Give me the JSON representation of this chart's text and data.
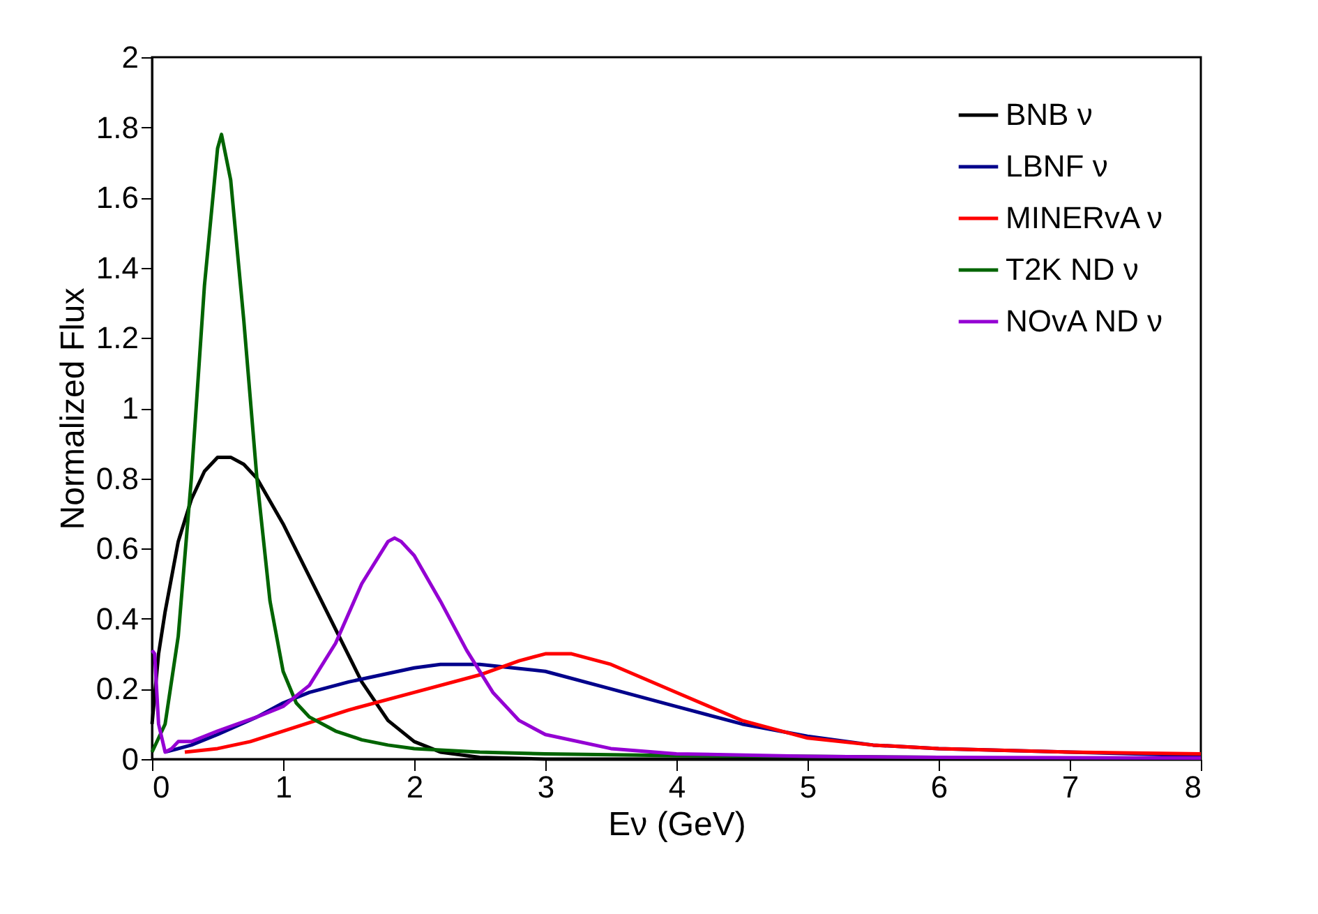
{
  "chart_data": {
    "type": "line",
    "xlabel": "Eν (GeV)",
    "ylabel": "Normalized Flux",
    "xlim": [
      0,
      8
    ],
    "xticks": [
      0,
      1,
      2,
      3,
      4,
      5,
      6,
      7,
      8
    ],
    "ylim": [
      0,
      2
    ],
    "yticks": [
      0,
      0.2,
      0.4,
      0.6,
      0.8,
      1,
      1.2,
      1.4,
      1.6,
      1.8,
      2
    ],
    "grid": false,
    "legend": "top right",
    "marker": "none",
    "line_style": "solid",
    "series": [
      {
        "name": "BNB ν",
        "color": "#000000",
        "x": [
          0,
          0.05,
          0.1,
          0.2,
          0.3,
          0.4,
          0.5,
          0.6,
          0.7,
          0.8,
          1.0,
          1.2,
          1.4,
          1.6,
          1.8,
          2.0,
          2.2,
          2.5,
          3,
          4,
          5,
          6,
          7,
          8
        ],
        "values": [
          0.1,
          0.3,
          0.42,
          0.62,
          0.74,
          0.82,
          0.86,
          0.86,
          0.84,
          0.8,
          0.67,
          0.52,
          0.37,
          0.22,
          0.11,
          0.05,
          0.02,
          0.005,
          0,
          0,
          0,
          0,
          0,
          0
        ]
      },
      {
        "name": "LBNF ν",
        "color": "#00008b",
        "x": [
          0.1,
          0.3,
          0.5,
          0.8,
          1.0,
          1.2,
          1.5,
          2.0,
          2.2,
          2.5,
          3.0,
          3.5,
          4.0,
          4.5,
          5.0,
          5.5,
          6,
          7,
          8
        ],
        "values": [
          0.02,
          0.04,
          0.07,
          0.12,
          0.16,
          0.19,
          0.22,
          0.26,
          0.27,
          0.27,
          0.25,
          0.2,
          0.15,
          0.1,
          0.065,
          0.04,
          0.03,
          0.02,
          0.01
        ]
      },
      {
        "name": "MINERvA ν",
        "color": "#ff0000",
        "x": [
          0.25,
          0.5,
          0.75,
          1.0,
          1.5,
          2.0,
          2.5,
          2.8,
          3.0,
          3.2,
          3.5,
          4.0,
          4.5,
          5.0,
          5.5,
          6,
          7,
          8
        ],
        "values": [
          0.02,
          0.03,
          0.05,
          0.08,
          0.14,
          0.19,
          0.24,
          0.28,
          0.3,
          0.3,
          0.27,
          0.19,
          0.11,
          0.06,
          0.04,
          0.03,
          0.02,
          0.015
        ]
      },
      {
        "name": "T2K ND ν",
        "color": "#006400",
        "x": [
          0,
          0.1,
          0.2,
          0.3,
          0.4,
          0.5,
          0.53,
          0.6,
          0.7,
          0.8,
          0.9,
          1.0,
          1.1,
          1.2,
          1.4,
          1.6,
          1.8,
          2.0,
          2.5,
          3,
          4,
          5,
          6
        ],
        "values": [
          0.02,
          0.1,
          0.35,
          0.8,
          1.35,
          1.74,
          1.78,
          1.65,
          1.25,
          0.8,
          0.45,
          0.25,
          0.16,
          0.12,
          0.08,
          0.055,
          0.04,
          0.03,
          0.02,
          0.015,
          0.01,
          0.008,
          0.005
        ]
      },
      {
        "name": "NOvA ND ν",
        "color": "#9400d3",
        "x": [
          0,
          0.02,
          0.05,
          0.1,
          0.15,
          0.2,
          0.3,
          0.5,
          0.8,
          1.0,
          1.2,
          1.4,
          1.6,
          1.8,
          1.85,
          1.9,
          2.0,
          2.2,
          2.4,
          2.6,
          2.8,
          3.0,
          3.5,
          4,
          5,
          6,
          8
        ],
        "values": [
          0.31,
          0.3,
          0.1,
          0.02,
          0.03,
          0.05,
          0.05,
          0.08,
          0.12,
          0.15,
          0.21,
          0.33,
          0.5,
          0.62,
          0.63,
          0.62,
          0.58,
          0.45,
          0.31,
          0.19,
          0.11,
          0.07,
          0.03,
          0.015,
          0.008,
          0.005,
          0.003
        ]
      }
    ]
  }
}
